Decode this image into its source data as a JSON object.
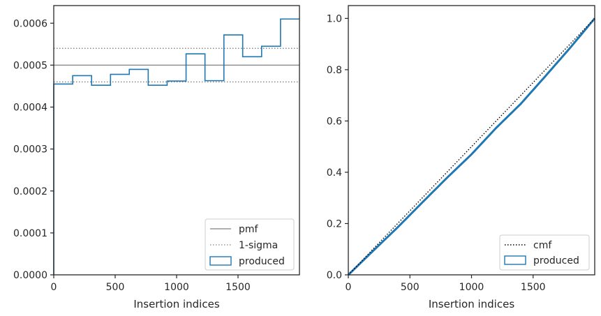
{
  "chart_data": [
    {
      "type": "histogram",
      "title": "",
      "xlabel": "Insertion indices",
      "ylabel": "",
      "xlim": [
        0,
        2000
      ],
      "ylim": [
        0,
        0.000642
      ],
      "grid": false,
      "legend_position": "bottom-right",
      "x_ticks": [
        0,
        500,
        1000,
        1500
      ],
      "x_tick_labels": [
        "0",
        "500",
        "1000",
        "1500"
      ],
      "y_ticks": [
        0,
        0.0001,
        0.0002,
        0.0003,
        0.0004,
        0.0005,
        0.0006
      ],
      "y_tick_labels": [
        "0.0000",
        "0.0001",
        "0.0002",
        "0.0003",
        "0.0004",
        "0.0005",
        "0.0006"
      ],
      "bin_edges": [
        0,
        154,
        308,
        462,
        615,
        769,
        923,
        1077,
        1231,
        1385,
        1538,
        1692,
        1846,
        2000
      ],
      "bin_values": [
        0.000455,
        0.000475,
        0.000452,
        0.000478,
        0.00049,
        0.000452,
        0.000462,
        0.000527,
        0.000463,
        0.000572,
        0.00052,
        0.000545,
        0.00061
      ],
      "pmf": 0.0005,
      "sigma_band": [
        0.00046,
        0.00054
      ],
      "series": [
        {
          "name": "pmf",
          "color": "#808080",
          "style": "solid"
        },
        {
          "name": "1-sigma",
          "color": "#808080",
          "style": "dotted"
        },
        {
          "name": "produced",
          "color": "#1f77b4",
          "style": "step"
        }
      ]
    },
    {
      "type": "line",
      "title": "",
      "xlabel": "Insertion indices",
      "ylabel": "",
      "xlim": [
        0,
        2000
      ],
      "ylim": [
        0,
        1.05
      ],
      "grid": false,
      "legend_position": "bottom-right",
      "x_ticks": [
        0,
        500,
        1000,
        1500
      ],
      "x_tick_labels": [
        "0",
        "500",
        "1000",
        "1500"
      ],
      "y_ticks": [
        0,
        0.2,
        0.4,
        0.6,
        0.8,
        1.0
      ],
      "y_tick_labels": [
        "0.0",
        "0.2",
        "0.4",
        "0.6",
        "0.8",
        "1.0"
      ],
      "cmf": {
        "x": [
          0,
          2000
        ],
        "y": [
          0,
          1.0
        ]
      },
      "produced": {
        "x": [
          0,
          200,
          400,
          600,
          800,
          1000,
          1200,
          1400,
          1600,
          1800,
          2000
        ],
        "y": [
          0,
          0.093,
          0.185,
          0.282,
          0.378,
          0.47,
          0.573,
          0.667,
          0.775,
          0.885,
          1.0
        ]
      },
      "series": [
        {
          "name": "cmf",
          "color": "#000000",
          "style": "dotted"
        },
        {
          "name": "produced",
          "color": "#1f77b4",
          "style": "solid"
        }
      ]
    }
  ]
}
